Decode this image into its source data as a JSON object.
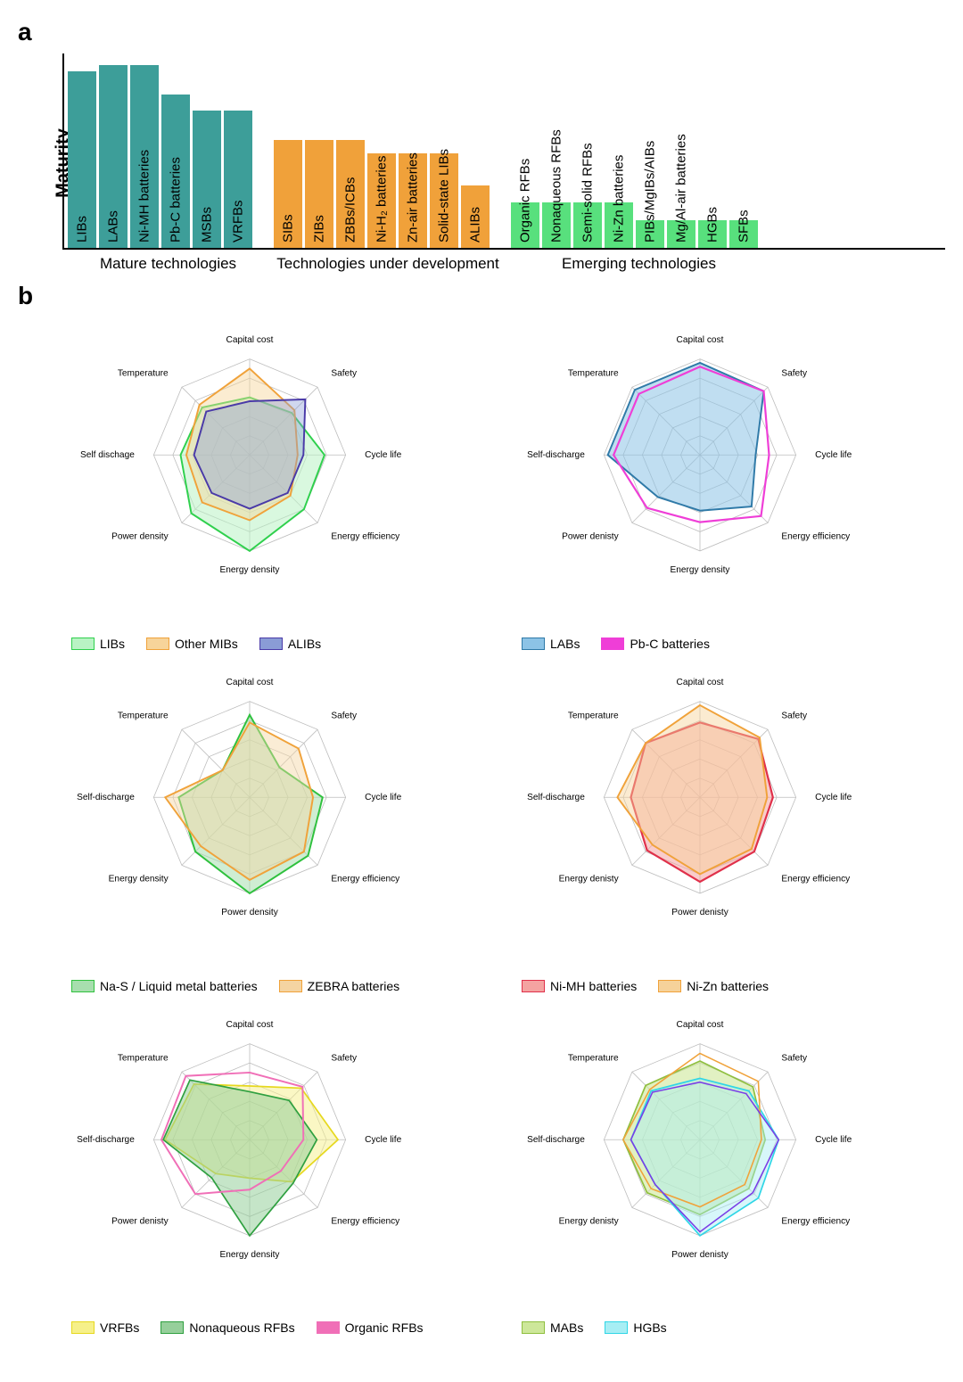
{
  "panelA": {
    "label": "a",
    "yAxisLabel": "Maturity",
    "chartHeightPx": 220,
    "barWidthPx": 32,
    "barGap": 3,
    "groupGap": 22,
    "groups": [
      {
        "name": "Mature technologies",
        "color": "#3d9e99",
        "bars": [
          {
            "label": "LIBs",
            "value": 0.9
          },
          {
            "label": "LABs",
            "value": 0.93
          },
          {
            "label": "Ni-MH batteries",
            "value": 0.93
          },
          {
            "label": "Pb-C batteries",
            "value": 0.78
          },
          {
            "label": "MSBs",
            "value": 0.7
          },
          {
            "label": "VRFBs",
            "value": 0.7
          }
        ]
      },
      {
        "name": "Technologies under development",
        "color": "#f0a13a",
        "bars": [
          {
            "label": "SIBs",
            "value": 0.55
          },
          {
            "label": "ZIBs",
            "value": 0.55
          },
          {
            "label": "ZBBs/ICBs",
            "value": 0.55
          },
          {
            "label": "Ni-H₂ batteries",
            "value": 0.48
          },
          {
            "label": "Zn-air batteries",
            "value": 0.48
          },
          {
            "label": "Solid-state LIBs",
            "value": 0.48
          },
          {
            "label": "ALIBs",
            "value": 0.32
          }
        ]
      },
      {
        "name": "Emerging technologies",
        "color": "#58e07d",
        "bars": [
          {
            "label": "Organic RFBs",
            "value": 0.23
          },
          {
            "label": "Nonaqueous RFBs",
            "value": 0.23
          },
          {
            "label": "Semi-solid RFBs",
            "value": 0.23
          },
          {
            "label": "Ni-Zn batteries",
            "value": 0.23
          },
          {
            "label": "PIBs/MgIBs/AIBs",
            "value": 0.14
          },
          {
            "label": "Mg/Al-air batteries",
            "value": 0.14
          },
          {
            "label": "HGBs",
            "value": 0.14
          },
          {
            "label": "SFBs",
            "value": 0.14
          }
        ]
      }
    ]
  },
  "panelB": {
    "label": "b",
    "radarSize": 460,
    "rings": 5,
    "gridColor": "#bdbdbd",
    "labelFontSize": 13,
    "charts": [
      {
        "axes": [
          "Capital cost",
          "Safety",
          "Cycle life",
          "Energy efficiency",
          "Energy density",
          "Power density",
          "Self dischage",
          "Temperature"
        ],
        "series": [
          {
            "name": "LIBs",
            "stroke": "#2fd04d",
            "fill": "#b9f3c4",
            "fillOpacity": 0.55,
            "lineWidth": 2.5,
            "values": [
              0.6,
              0.62,
              0.78,
              0.8,
              1.0,
              0.86,
              0.72,
              0.7
            ]
          },
          {
            "name": "Other MIBs",
            "stroke": "#f0a23a",
            "fill": "#f7d49a",
            "fillOpacity": 0.45,
            "lineWidth": 2.5,
            "values": [
              0.9,
              0.66,
              0.5,
              0.6,
              0.68,
              0.7,
              0.66,
              0.74
            ]
          },
          {
            "name": "ALIBs",
            "stroke": "#4a3aa8",
            "fill": "#8a9cd6",
            "fillOpacity": 0.4,
            "lineWidth": 2.5,
            "values": [
              0.56,
              0.82,
              0.56,
              0.56,
              0.56,
              0.56,
              0.58,
              0.64
            ]
          }
        ]
      },
      {
        "axes": [
          "Capital cost",
          "Safety",
          "Cycle life",
          "Energy efficiency",
          "Energy density",
          "Power denisty",
          "Self-discharge",
          "Temperature"
        ],
        "series": [
          {
            "name": "LABs",
            "stroke": "#2f7aa8",
            "fill": "#8cc3e6",
            "fillOpacity": 0.55,
            "lineWidth": 2.5,
            "values": [
              0.96,
              0.94,
              0.58,
              0.76,
              0.58,
              0.62,
              0.96,
              0.96
            ]
          },
          {
            "name": "Pb-C batteries",
            "stroke": "#ef3ed7",
            "fill": "none",
            "fillOpacity": 0,
            "lineWidth": 2.8,
            "values": [
              0.92,
              0.94,
              0.72,
              0.9,
              0.7,
              0.78,
              0.9,
              0.9
            ]
          }
        ]
      },
      {
        "axes": [
          "Capital cost",
          "Safety",
          "Cycle life",
          "Energy efficiency",
          "Power density",
          "Energy density",
          "Self-discharge",
          "Temperature"
        ],
        "series": [
          {
            "name": "Na-S / Liquid metal batteries",
            "stroke": "#2fc13e",
            "fill": "#a7deae",
            "fillOpacity": 0.55,
            "lineWidth": 2.5,
            "values": [
              0.86,
              0.44,
              0.76,
              0.86,
              1.0,
              0.8,
              0.74,
              0.4
            ]
          },
          {
            "name": "ZEBRA batteries",
            "stroke": "#f0a23a",
            "fill": "#f4d4a2",
            "fillOpacity": 0.45,
            "lineWidth": 2.5,
            "values": [
              0.78,
              0.72,
              0.66,
              0.8,
              0.86,
              0.72,
              0.88,
              0.4
            ]
          }
        ]
      },
      {
        "axes": [
          "Capital cost",
          "Safety",
          "Cycle life",
          "Energy efficiency",
          "Power denisty",
          "Energy denisty",
          "Self-discharge",
          "Temperature"
        ],
        "series": [
          {
            "name": "Ni-MH batteries",
            "stroke": "#e0304a",
            "fill": "#f4a3a1",
            "fillOpacity": 0.55,
            "lineWidth": 2.8,
            "values": [
              0.78,
              0.86,
              0.76,
              0.8,
              0.88,
              0.78,
              0.72,
              0.8
            ]
          },
          {
            "name": "Ni-Zn batteries",
            "stroke": "#f0a23a",
            "fill": "#f6d29a",
            "fillOpacity": 0.45,
            "lineWidth": 2.5,
            "values": [
              0.96,
              0.88,
              0.7,
              0.76,
              0.8,
              0.7,
              0.86,
              0.8
            ]
          }
        ]
      },
      {
        "axes": [
          "Capital cost",
          "Safety",
          "Cycle life",
          "Energy efficiency",
          "Energy density",
          "Power denisty",
          "Self-discharge",
          "Temperature"
        ],
        "series": [
          {
            "name": "VRFBs",
            "stroke": "#e6d81e",
            "fill": "#f6f08a",
            "fillOpacity": 0.5,
            "lineWidth": 2.2,
            "values": [
              0.56,
              0.76,
              0.92,
              0.62,
              0.4,
              0.5,
              0.88,
              0.82
            ]
          },
          {
            "name": "Nonaqueous RFBs",
            "stroke": "#2fa040",
            "fill": "#96cf9b",
            "fillOpacity": 0.55,
            "lineWidth": 2.2,
            "values": [
              0.5,
              0.58,
              0.7,
              0.64,
              1.0,
              0.56,
              0.9,
              0.88
            ]
          },
          {
            "name": "Organic RFBs",
            "stroke": "#f06fb7",
            "fill": "none",
            "fillOpacity": 0,
            "lineWidth": 2.5,
            "values": [
              0.7,
              0.78,
              0.56,
              0.46,
              0.52,
              0.8,
              0.92,
              0.94
            ]
          }
        ]
      },
      {
        "axes": [
          "Capital cost",
          "Safety",
          "Cycle life",
          "Energy efficiency",
          "Power denisty",
          "Energy denisty",
          "Self-discharge",
          "Temperature"
        ],
        "series": [
          {
            "name": "MABs",
            "stroke": "#8fbf3f",
            "fill": "#cde79a",
            "fillOpacity": 0.6,
            "lineWidth": 2.2,
            "values": [
              0.82,
              0.78,
              0.68,
              0.72,
              0.78,
              0.78,
              0.8,
              0.8
            ]
          },
          {
            "name": "HGBs",
            "stroke": "#2fd6e6",
            "fill": "#a7eef4",
            "fillOpacity": 0.45,
            "lineWidth": 2.2,
            "values": [
              0.64,
              0.72,
              0.82,
              0.86,
              1.0,
              0.66,
              0.72,
              0.72
            ]
          }
        ],
        "extra": [
          {
            "stroke": "#f0a23a",
            "values": [
              0.9,
              0.86,
              0.64,
              0.66,
              0.7,
              0.72,
              0.8,
              0.74
            ]
          },
          {
            "stroke": "#7a3de6",
            "values": [
              0.6,
              0.68,
              0.82,
              0.78,
              0.96,
              0.66,
              0.72,
              0.7
            ]
          }
        ]
      }
    ]
  }
}
